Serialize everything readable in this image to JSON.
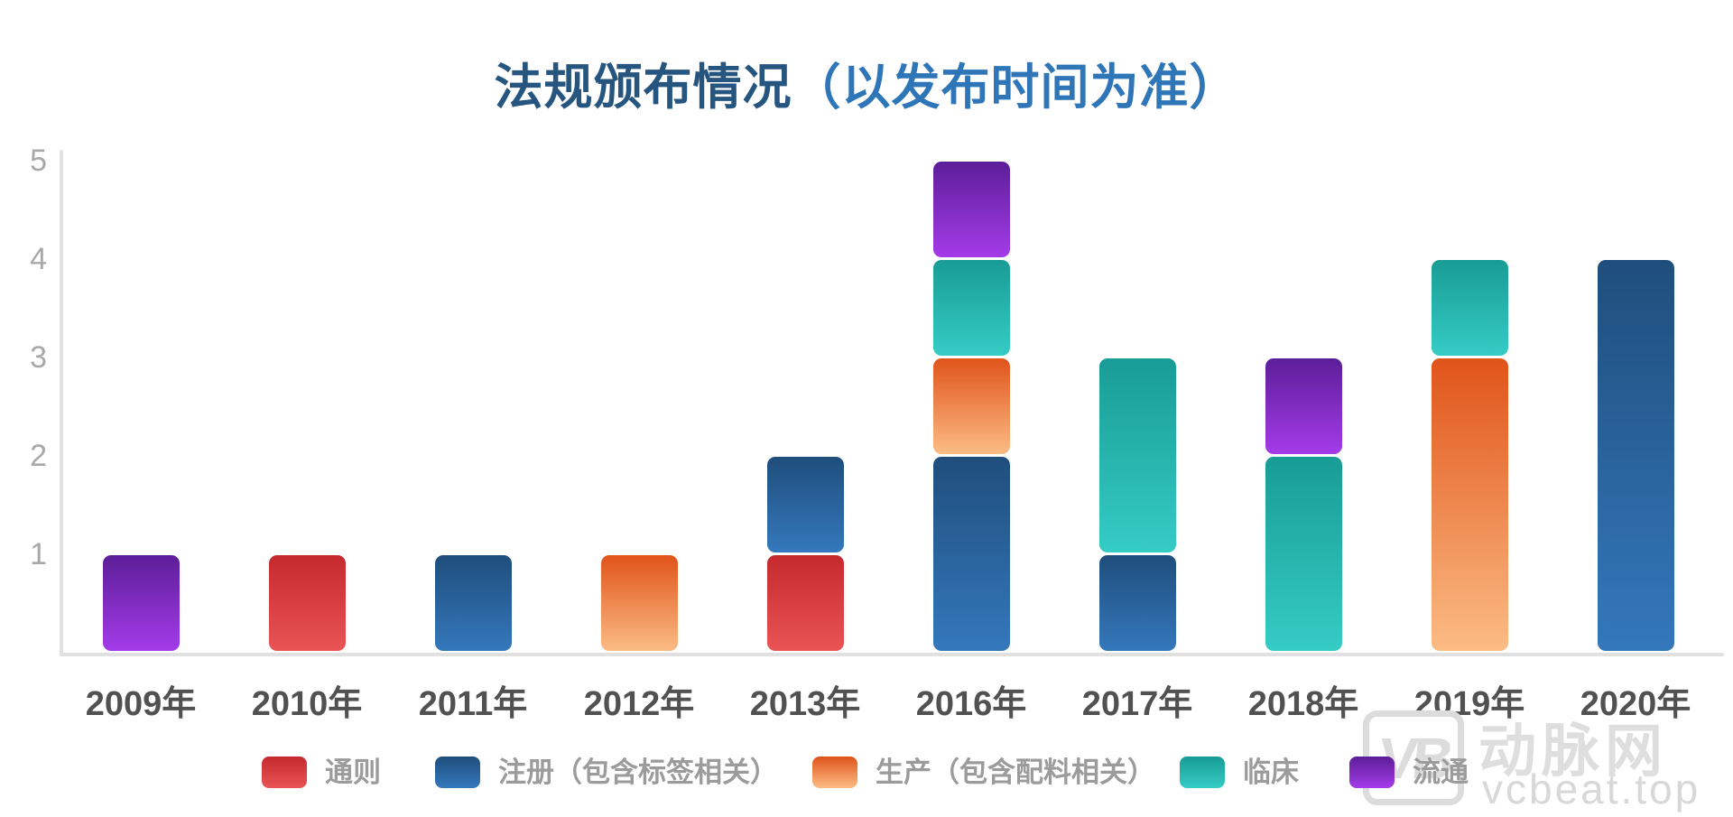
{
  "title": {
    "main": "法规颁布情况",
    "paren": "（以发布时间为准）"
  },
  "chart_data": {
    "type": "bar",
    "stacked": true,
    "title": "法规颁布情况（以发布时间为准）",
    "xlabel": "",
    "ylabel": "",
    "ylim": [
      0,
      5
    ],
    "yticks": [
      1,
      2,
      3,
      4,
      5
    ],
    "grid": false,
    "legend_position": "bottom",
    "categories": [
      "2009年",
      "2010年",
      "2011年",
      "2012年",
      "2013年",
      "2016年",
      "2017年",
      "2018年",
      "2019年",
      "2020年"
    ],
    "series": [
      {
        "name": "通则",
        "color_top": "#C4292E",
        "color_bottom": "#EA5455",
        "values": [
          0,
          1,
          0,
          0,
          1,
          0,
          0,
          0,
          0,
          0
        ]
      },
      {
        "name": "注册（包含标签相关）",
        "color_top": "#1F4E7C",
        "color_bottom": "#3478BC",
        "values": [
          0,
          0,
          1,
          0,
          1,
          2,
          1,
          0,
          0,
          4
        ]
      },
      {
        "name": "生产（包含配料相关）",
        "color_top": "#E0541A",
        "color_bottom": "#FBBC84",
        "values": [
          0,
          0,
          0,
          1,
          0,
          1,
          0,
          0,
          3,
          0
        ]
      },
      {
        "name": "临床",
        "color_top": "#189C95",
        "color_bottom": "#35CCC5",
        "values": [
          0,
          0,
          0,
          0,
          0,
          1,
          2,
          2,
          1,
          0
        ]
      },
      {
        "name": "流通",
        "color_top": "#5C1E98",
        "color_bottom": "#A43BE9",
        "values": [
          1,
          0,
          0,
          0,
          0,
          1,
          0,
          1,
          0,
          0
        ]
      }
    ],
    "totals": [
      1,
      1,
      1,
      1,
      2,
      5,
      3,
      3,
      4,
      4
    ]
  },
  "watermark": {
    "logo": "VB",
    "name": "动脉网",
    "url": "vcbeat.top"
  }
}
